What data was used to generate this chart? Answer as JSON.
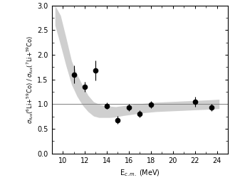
{
  "x_data": [
    11.0,
    12.0,
    13.0,
    14.0,
    15.0,
    16.0,
    17.0,
    18.0,
    22.0,
    23.5
  ],
  "y_data": [
    1.6,
    1.35,
    1.68,
    0.97,
    0.68,
    0.93,
    0.8,
    0.99,
    1.05,
    0.93
  ],
  "y_err_lo": [
    0.18,
    0.1,
    0.2,
    0.07,
    0.08,
    0.07,
    0.07,
    0.07,
    0.1,
    0.07
  ],
  "y_err_hi": [
    0.18,
    0.1,
    0.2,
    0.07,
    0.08,
    0.07,
    0.07,
    0.07,
    0.1,
    0.07
  ],
  "xlabel": "E$_{c.m.}$ (MeV)",
  "xlim": [
    9.0,
    25.0
  ],
  "ylim": [
    0.0,
    3.0
  ],
  "xticks": [
    10,
    12,
    14,
    16,
    18,
    20,
    22,
    24
  ],
  "yticks": [
    0.0,
    0.5,
    1.0,
    1.5,
    2.0,
    2.5,
    3.0
  ],
  "band_x": [
    9.3,
    9.8,
    10.3,
    10.8,
    11.3,
    11.8,
    12.3,
    12.8,
    13.3,
    13.8,
    14.3,
    14.8,
    15.5,
    16.5,
    17.5,
    18.5,
    19.5,
    20.5,
    21.5,
    22.5,
    23.5,
    24.2
  ],
  "band_upper": [
    3.0,
    2.8,
    2.35,
    1.88,
    1.6,
    1.38,
    1.18,
    1.05,
    1.0,
    0.97,
    0.96,
    0.95,
    0.97,
    1.0,
    1.02,
    1.04,
    1.05,
    1.06,
    1.07,
    1.08,
    1.09,
    1.1
  ],
  "band_lower": [
    2.6,
    2.2,
    1.78,
    1.4,
    1.16,
    0.98,
    0.85,
    0.76,
    0.73,
    0.73,
    0.73,
    0.74,
    0.77,
    0.8,
    0.83,
    0.85,
    0.86,
    0.87,
    0.88,
    0.89,
    0.9,
    0.91
  ],
  "hline_y": 1.0,
  "band_color": "#c0c0c0",
  "band_alpha": 0.75,
  "point_color": "black",
  "marker_size": 4.5,
  "ylabel_line1": "$\\sigma_{fus}(^6$Li$+^{59}$Co) / $\\sigma_{fus}(^7$Li$+^{59}$Co)",
  "label_fontsize": 7,
  "tick_fontsize": 7
}
